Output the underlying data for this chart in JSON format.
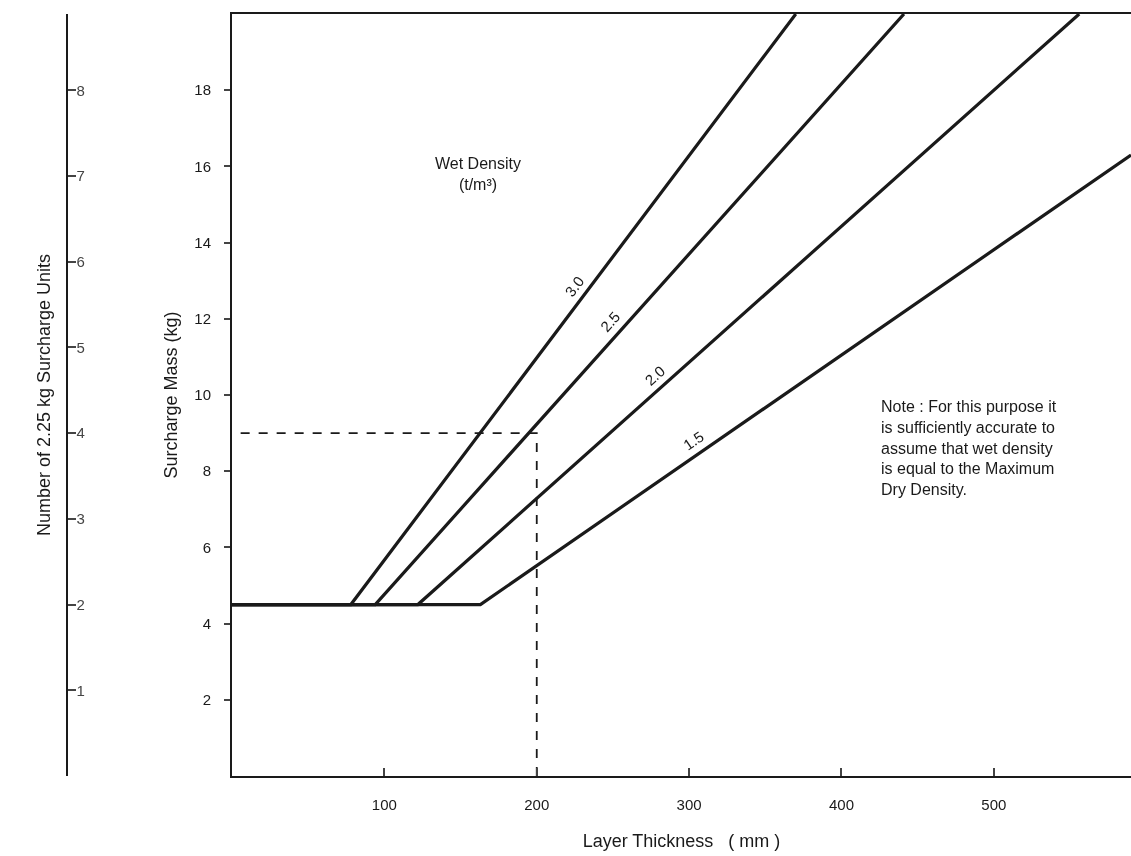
{
  "chart_data": {
    "type": "line",
    "xlabel": "Layer Thickness   ( mm )",
    "ylabel": "Surcharge Mass (kg)",
    "y2label": "Number of 2.25 kg Surcharge Units",
    "xlim": [
      0,
      590
    ],
    "xticks": [
      100,
      200,
      300,
      400,
      500
    ],
    "ylim": [
      0,
      20
    ],
    "yticks": [
      2,
      4,
      6,
      8,
      10,
      12,
      14,
      16,
      18
    ],
    "y2lim": [
      0,
      8.89
    ],
    "y2ticks": [
      1,
      2,
      3,
      4,
      5,
      6,
      7,
      8
    ],
    "legend": false,
    "marker": "none",
    "series": [
      {
        "name": "3.0",
        "color": "#1a1a1a",
        "x": [
          0,
          78,
          370
        ],
        "values": [
          4.5,
          4.5,
          20
        ],
        "line_style": "solid"
      },
      {
        "name": "2.5",
        "color": "#1a1a1a",
        "x": [
          0,
          94,
          441
        ],
        "values": [
          4.5,
          4.5,
          20
        ],
        "line_style": "solid"
      },
      {
        "name": "2.0",
        "color": "#1a1a1a",
        "x": [
          0,
          122,
          556
        ],
        "values": [
          4.5,
          4.5,
          20
        ],
        "line_style": "solid"
      },
      {
        "name": "1.5",
        "color": "#1a1a1a",
        "x": [
          0,
          163,
          590
        ],
        "values": [
          4.5,
          4.5,
          16.3
        ],
        "line_style": "solid"
      },
      {
        "color": "#1a1a1a",
        "x": [
          200,
          200,
          0
        ],
        "values": [
          0,
          9,
          9
        ],
        "line_style": "dashed"
      }
    ],
    "annotations": [
      "Wet Density\n(t/m³)",
      "Note : For this purpose it\nis sufficiently accurate to\nassume that wet density\nis equal to the Maximum\nDry Density."
    ]
  }
}
